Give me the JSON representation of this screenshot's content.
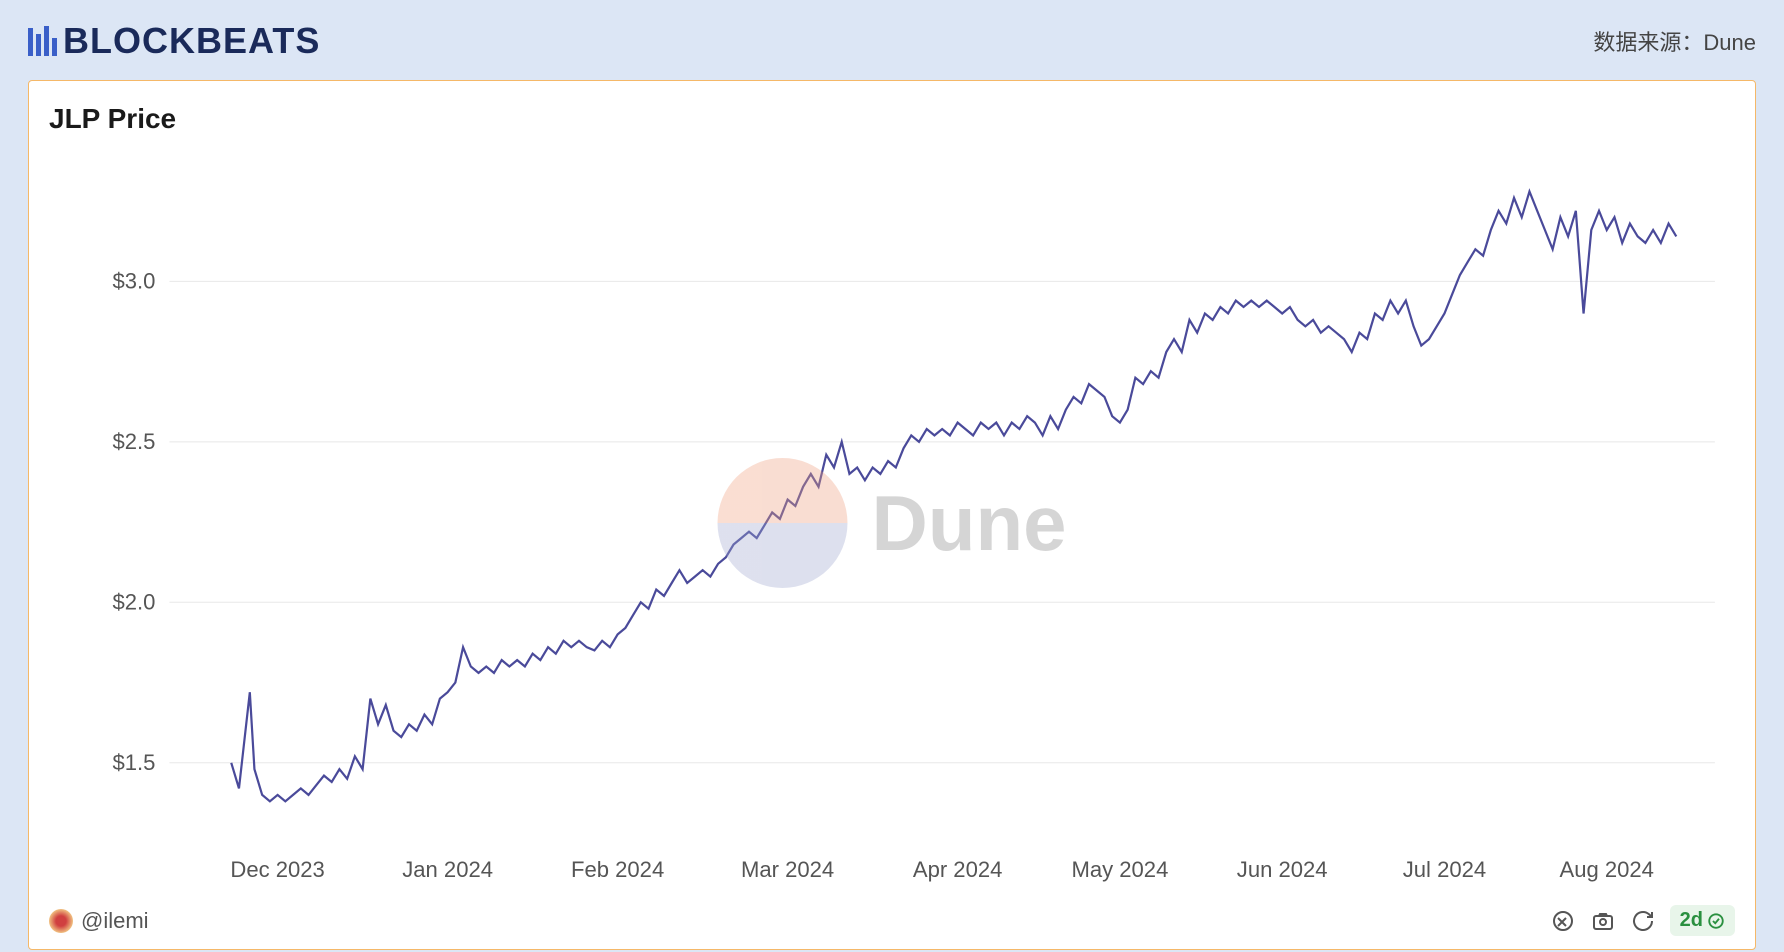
{
  "header": {
    "logo_text": "BLOCKBEATS",
    "data_source_label": "数据来源：Dune"
  },
  "chart": {
    "type": "line",
    "title": "JLP Price",
    "title_fontsize": 28,
    "title_fontweight": 700,
    "background_color": "#ffffff",
    "border_color": "#f5b868",
    "line_color": "#4a4a9a",
    "line_width": 2.2,
    "grid_color": "#e8e8e8",
    "axis_label_color": "#555555",
    "axis_label_fontsize": 22,
    "y_axis": {
      "ticks": [
        1.5,
        2.0,
        2.5,
        3.0
      ],
      "labels": [
        "$1.5",
        "$2.0",
        "$2.5",
        "$3.0"
      ],
      "min": 1.25,
      "max": 3.4
    },
    "x_axis": {
      "labels": [
        "Dec 2023",
        "Jan 2024",
        "Feb 2024",
        "Mar 2024",
        "Apr 2024",
        "May 2024",
        "Jun 2024",
        "Jul 2024",
        "Aug 2024"
      ],
      "tick_positions": [
        0.07,
        0.18,
        0.29,
        0.4,
        0.51,
        0.615,
        0.72,
        0.825,
        0.93
      ]
    },
    "data": [
      {
        "x": 0.04,
        "y": 1.5
      },
      {
        "x": 0.045,
        "y": 1.42
      },
      {
        "x": 0.052,
        "y": 1.72
      },
      {
        "x": 0.055,
        "y": 1.48
      },
      {
        "x": 0.06,
        "y": 1.4
      },
      {
        "x": 0.065,
        "y": 1.38
      },
      {
        "x": 0.07,
        "y": 1.4
      },
      {
        "x": 0.075,
        "y": 1.38
      },
      {
        "x": 0.08,
        "y": 1.4
      },
      {
        "x": 0.085,
        "y": 1.42
      },
      {
        "x": 0.09,
        "y": 1.4
      },
      {
        "x": 0.095,
        "y": 1.43
      },
      {
        "x": 0.1,
        "y": 1.46
      },
      {
        "x": 0.105,
        "y": 1.44
      },
      {
        "x": 0.11,
        "y": 1.48
      },
      {
        "x": 0.115,
        "y": 1.45
      },
      {
        "x": 0.12,
        "y": 1.52
      },
      {
        "x": 0.125,
        "y": 1.48
      },
      {
        "x": 0.13,
        "y": 1.7
      },
      {
        "x": 0.135,
        "y": 1.62
      },
      {
        "x": 0.14,
        "y": 1.68
      },
      {
        "x": 0.145,
        "y": 1.6
      },
      {
        "x": 0.15,
        "y": 1.58
      },
      {
        "x": 0.155,
        "y": 1.62
      },
      {
        "x": 0.16,
        "y": 1.6
      },
      {
        "x": 0.165,
        "y": 1.65
      },
      {
        "x": 0.17,
        "y": 1.62
      },
      {
        "x": 0.175,
        "y": 1.7
      },
      {
        "x": 0.18,
        "y": 1.72
      },
      {
        "x": 0.185,
        "y": 1.75
      },
      {
        "x": 0.19,
        "y": 1.86
      },
      {
        "x": 0.195,
        "y": 1.8
      },
      {
        "x": 0.2,
        "y": 1.78
      },
      {
        "x": 0.205,
        "y": 1.8
      },
      {
        "x": 0.21,
        "y": 1.78
      },
      {
        "x": 0.215,
        "y": 1.82
      },
      {
        "x": 0.22,
        "y": 1.8
      },
      {
        "x": 0.225,
        "y": 1.82
      },
      {
        "x": 0.23,
        "y": 1.8
      },
      {
        "x": 0.235,
        "y": 1.84
      },
      {
        "x": 0.24,
        "y": 1.82
      },
      {
        "x": 0.245,
        "y": 1.86
      },
      {
        "x": 0.25,
        "y": 1.84
      },
      {
        "x": 0.255,
        "y": 1.88
      },
      {
        "x": 0.26,
        "y": 1.86
      },
      {
        "x": 0.265,
        "y": 1.88
      },
      {
        "x": 0.27,
        "y": 1.86
      },
      {
        "x": 0.275,
        "y": 1.85
      },
      {
        "x": 0.28,
        "y": 1.88
      },
      {
        "x": 0.285,
        "y": 1.86
      },
      {
        "x": 0.29,
        "y": 1.9
      },
      {
        "x": 0.295,
        "y": 1.92
      },
      {
        "x": 0.3,
        "y": 1.96
      },
      {
        "x": 0.305,
        "y": 2.0
      },
      {
        "x": 0.31,
        "y": 1.98
      },
      {
        "x": 0.315,
        "y": 2.04
      },
      {
        "x": 0.32,
        "y": 2.02
      },
      {
        "x": 0.325,
        "y": 2.06
      },
      {
        "x": 0.33,
        "y": 2.1
      },
      {
        "x": 0.335,
        "y": 2.06
      },
      {
        "x": 0.34,
        "y": 2.08
      },
      {
        "x": 0.345,
        "y": 2.1
      },
      {
        "x": 0.35,
        "y": 2.08
      },
      {
        "x": 0.355,
        "y": 2.12
      },
      {
        "x": 0.36,
        "y": 2.14
      },
      {
        "x": 0.365,
        "y": 2.18
      },
      {
        "x": 0.37,
        "y": 2.2
      },
      {
        "x": 0.375,
        "y": 2.22
      },
      {
        "x": 0.38,
        "y": 2.2
      },
      {
        "x": 0.385,
        "y": 2.24
      },
      {
        "x": 0.39,
        "y": 2.28
      },
      {
        "x": 0.395,
        "y": 2.26
      },
      {
        "x": 0.4,
        "y": 2.32
      },
      {
        "x": 0.405,
        "y": 2.3
      },
      {
        "x": 0.41,
        "y": 2.36
      },
      {
        "x": 0.415,
        "y": 2.4
      },
      {
        "x": 0.42,
        "y": 2.36
      },
      {
        "x": 0.425,
        "y": 2.46
      },
      {
        "x": 0.43,
        "y": 2.42
      },
      {
        "x": 0.435,
        "y": 2.5
      },
      {
        "x": 0.44,
        "y": 2.4
      },
      {
        "x": 0.445,
        "y": 2.42
      },
      {
        "x": 0.45,
        "y": 2.38
      },
      {
        "x": 0.455,
        "y": 2.42
      },
      {
        "x": 0.46,
        "y": 2.4
      },
      {
        "x": 0.465,
        "y": 2.44
      },
      {
        "x": 0.47,
        "y": 2.42
      },
      {
        "x": 0.475,
        "y": 2.48
      },
      {
        "x": 0.48,
        "y": 2.52
      },
      {
        "x": 0.485,
        "y": 2.5
      },
      {
        "x": 0.49,
        "y": 2.54
      },
      {
        "x": 0.495,
        "y": 2.52
      },
      {
        "x": 0.5,
        "y": 2.54
      },
      {
        "x": 0.505,
        "y": 2.52
      },
      {
        "x": 0.51,
        "y": 2.56
      },
      {
        "x": 0.515,
        "y": 2.54
      },
      {
        "x": 0.52,
        "y": 2.52
      },
      {
        "x": 0.525,
        "y": 2.56
      },
      {
        "x": 0.53,
        "y": 2.54
      },
      {
        "x": 0.535,
        "y": 2.56
      },
      {
        "x": 0.54,
        "y": 2.52
      },
      {
        "x": 0.545,
        "y": 2.56
      },
      {
        "x": 0.55,
        "y": 2.54
      },
      {
        "x": 0.555,
        "y": 2.58
      },
      {
        "x": 0.56,
        "y": 2.56
      },
      {
        "x": 0.565,
        "y": 2.52
      },
      {
        "x": 0.57,
        "y": 2.58
      },
      {
        "x": 0.575,
        "y": 2.54
      },
      {
        "x": 0.58,
        "y": 2.6
      },
      {
        "x": 0.585,
        "y": 2.64
      },
      {
        "x": 0.59,
        "y": 2.62
      },
      {
        "x": 0.595,
        "y": 2.68
      },
      {
        "x": 0.6,
        "y": 2.66
      },
      {
        "x": 0.605,
        "y": 2.64
      },
      {
        "x": 0.61,
        "y": 2.58
      },
      {
        "x": 0.615,
        "y": 2.56
      },
      {
        "x": 0.62,
        "y": 2.6
      },
      {
        "x": 0.625,
        "y": 2.7
      },
      {
        "x": 0.63,
        "y": 2.68
      },
      {
        "x": 0.635,
        "y": 2.72
      },
      {
        "x": 0.64,
        "y": 2.7
      },
      {
        "x": 0.645,
        "y": 2.78
      },
      {
        "x": 0.65,
        "y": 2.82
      },
      {
        "x": 0.655,
        "y": 2.78
      },
      {
        "x": 0.66,
        "y": 2.88
      },
      {
        "x": 0.665,
        "y": 2.84
      },
      {
        "x": 0.67,
        "y": 2.9
      },
      {
        "x": 0.675,
        "y": 2.88
      },
      {
        "x": 0.68,
        "y": 2.92
      },
      {
        "x": 0.685,
        "y": 2.9
      },
      {
        "x": 0.69,
        "y": 2.94
      },
      {
        "x": 0.695,
        "y": 2.92
      },
      {
        "x": 0.7,
        "y": 2.94
      },
      {
        "x": 0.705,
        "y": 2.92
      },
      {
        "x": 0.71,
        "y": 2.94
      },
      {
        "x": 0.715,
        "y": 2.92
      },
      {
        "x": 0.72,
        "y": 2.9
      },
      {
        "x": 0.725,
        "y": 2.92
      },
      {
        "x": 0.73,
        "y": 2.88
      },
      {
        "x": 0.735,
        "y": 2.86
      },
      {
        "x": 0.74,
        "y": 2.88
      },
      {
        "x": 0.745,
        "y": 2.84
      },
      {
        "x": 0.75,
        "y": 2.86
      },
      {
        "x": 0.755,
        "y": 2.84
      },
      {
        "x": 0.76,
        "y": 2.82
      },
      {
        "x": 0.765,
        "y": 2.78
      },
      {
        "x": 0.77,
        "y": 2.84
      },
      {
        "x": 0.775,
        "y": 2.82
      },
      {
        "x": 0.78,
        "y": 2.9
      },
      {
        "x": 0.785,
        "y": 2.88
      },
      {
        "x": 0.79,
        "y": 2.94
      },
      {
        "x": 0.795,
        "y": 2.9
      },
      {
        "x": 0.8,
        "y": 2.94
      },
      {
        "x": 0.805,
        "y": 2.86
      },
      {
        "x": 0.81,
        "y": 2.8
      },
      {
        "x": 0.815,
        "y": 2.82
      },
      {
        "x": 0.82,
        "y": 2.86
      },
      {
        "x": 0.825,
        "y": 2.9
      },
      {
        "x": 0.83,
        "y": 2.96
      },
      {
        "x": 0.835,
        "y": 3.02
      },
      {
        "x": 0.84,
        "y": 3.06
      },
      {
        "x": 0.845,
        "y": 3.1
      },
      {
        "x": 0.85,
        "y": 3.08
      },
      {
        "x": 0.855,
        "y": 3.16
      },
      {
        "x": 0.86,
        "y": 3.22
      },
      {
        "x": 0.865,
        "y": 3.18
      },
      {
        "x": 0.87,
        "y": 3.26
      },
      {
        "x": 0.875,
        "y": 3.2
      },
      {
        "x": 0.88,
        "y": 3.28
      },
      {
        "x": 0.885,
        "y": 3.22
      },
      {
        "x": 0.89,
        "y": 3.16
      },
      {
        "x": 0.895,
        "y": 3.1
      },
      {
        "x": 0.9,
        "y": 3.2
      },
      {
        "x": 0.905,
        "y": 3.14
      },
      {
        "x": 0.91,
        "y": 3.22
      },
      {
        "x": 0.915,
        "y": 2.9
      },
      {
        "x": 0.92,
        "y": 3.16
      },
      {
        "x": 0.925,
        "y": 3.22
      },
      {
        "x": 0.93,
        "y": 3.16
      },
      {
        "x": 0.935,
        "y": 3.2
      },
      {
        "x": 0.94,
        "y": 3.12
      },
      {
        "x": 0.945,
        "y": 3.18
      },
      {
        "x": 0.95,
        "y": 3.14
      },
      {
        "x": 0.955,
        "y": 3.12
      },
      {
        "x": 0.96,
        "y": 3.16
      },
      {
        "x": 0.965,
        "y": 3.12
      },
      {
        "x": 0.97,
        "y": 3.18
      },
      {
        "x": 0.975,
        "y": 3.14
      }
    ]
  },
  "watermark": {
    "text": "Dune",
    "text_color": "#888888",
    "fontsize": 78,
    "circle_top_color": "#f0a080",
    "circle_bottom_color": "#a0a8d0"
  },
  "footer": {
    "author_handle": "@ilemi",
    "refresh_label": "2d"
  },
  "page_background": "#dce6f5"
}
